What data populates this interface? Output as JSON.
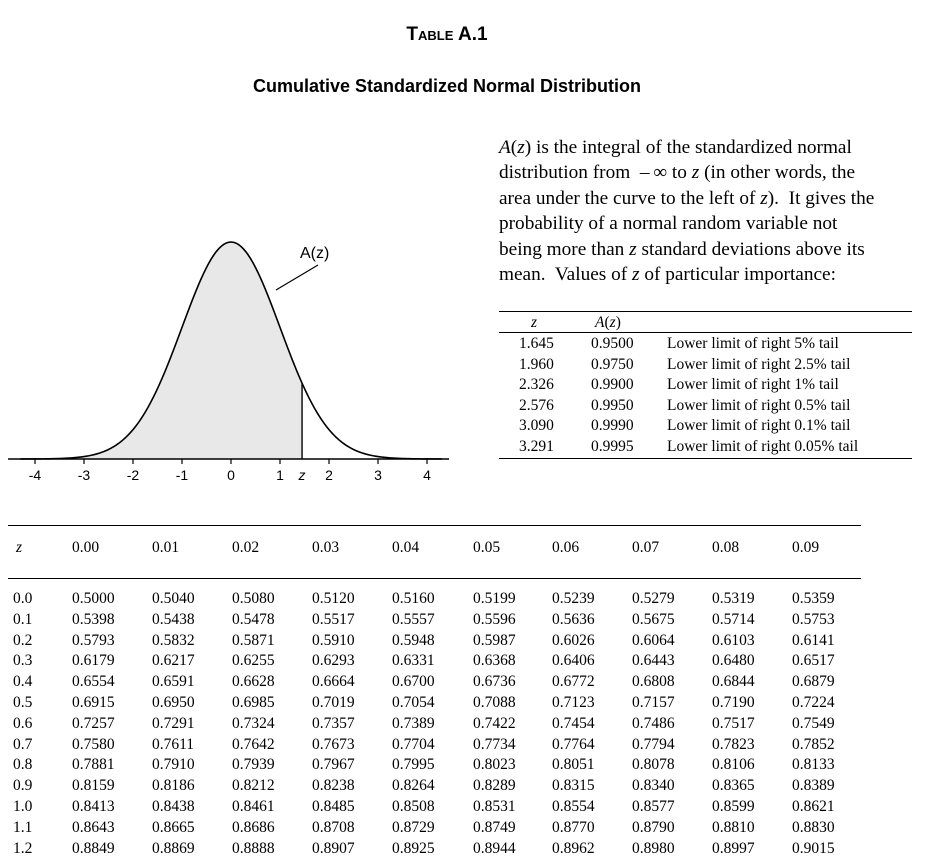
{
  "header": {
    "table_label": "Table A.1",
    "subtitle": "Cumulative Standardized Normal Distribution"
  },
  "description": {
    "lines": [
      [
        {
          "t": "A",
          "i": true
        },
        {
          "t": "(",
          "i": false
        },
        {
          "t": "z",
          "i": true
        },
        {
          "t": ") is the integral of the standardized normal",
          "i": false
        }
      ],
      [
        {
          "t": "distribution from  – ∞ to ",
          "i": false
        },
        {
          "t": "z",
          "i": true
        },
        {
          "t": " (in other words, the",
          "i": false
        }
      ],
      [
        {
          "t": "area under the curve to the left of ",
          "i": false
        },
        {
          "t": "z",
          "i": true
        },
        {
          "t": ").  It gives the",
          "i": false
        }
      ],
      [
        {
          "t": "probability of a normal random variable not",
          "i": false
        }
      ],
      [
        {
          "t": "being more than ",
          "i": false
        },
        {
          "t": "z",
          "i": true
        },
        {
          "t": " standard deviations above its",
          "i": false
        }
      ],
      [
        {
          "t": "mean.  Values of ",
          "i": false
        },
        {
          "t": "z",
          "i": true
        },
        {
          "t": " of particular importance:",
          "i": false
        }
      ]
    ]
  },
  "figure": {
    "area_label": "A(z)",
    "z_marker": "z",
    "z_value": 1.45,
    "x_ticks": [
      "-4",
      "-3",
      "-2",
      "-1",
      "0",
      "1",
      "2",
      "3",
      "4"
    ],
    "colors": {
      "fill": "#e8e8e8",
      "line": "#000000"
    }
  },
  "special_values": {
    "headers": [
      "z",
      "A(z)"
    ],
    "rows": [
      [
        "1.645",
        "0.9500",
        "Lower limit of right 5% tail"
      ],
      [
        "1.960",
        "0.9750",
        "Lower limit of right 2.5% tail"
      ],
      [
        "2.326",
        "0.9900",
        "Lower limit of right 1% tail"
      ],
      [
        "2.576",
        "0.9950",
        "Lower limit of right 0.5% tail"
      ],
      [
        "3.090",
        "0.9990",
        "Lower limit of right 0.1% tail"
      ],
      [
        "3.291",
        "0.9995",
        "Lower limit of right 0.05% tail"
      ]
    ]
  },
  "main_table": {
    "headers": [
      "z",
      "0.00",
      "0.01",
      "0.02",
      "0.03",
      "0.04",
      "0.05",
      "0.06",
      "0.07",
      "0.08",
      "0.09"
    ],
    "rows": [
      [
        "0.0",
        "0.5000",
        "0.5040",
        "0.5080",
        "0.5120",
        "0.5160",
        "0.5199",
        "0.5239",
        "0.5279",
        "0.5319",
        "0.5359"
      ],
      [
        "0.1",
        "0.5398",
        "0.5438",
        "0.5478",
        "0.5517",
        "0.5557",
        "0.5596",
        "0.5636",
        "0.5675",
        "0.5714",
        "0.5753"
      ],
      [
        "0.2",
        "0.5793",
        "0.5832",
        "0.5871",
        "0.5910",
        "0.5948",
        "0.5987",
        "0.6026",
        "0.6064",
        "0.6103",
        "0.6141"
      ],
      [
        "0.3",
        "0.6179",
        "0.6217",
        "0.6255",
        "0.6293",
        "0.6331",
        "0.6368",
        "0.6406",
        "0.6443",
        "0.6480",
        "0.6517"
      ],
      [
        "0.4",
        "0.6554",
        "0.6591",
        "0.6628",
        "0.6664",
        "0.6700",
        "0.6736",
        "0.6772",
        "0.6808",
        "0.6844",
        "0.6879"
      ],
      [
        "0.5",
        "0.6915",
        "0.6950",
        "0.6985",
        "0.7019",
        "0.7054",
        "0.7088",
        "0.7123",
        "0.7157",
        "0.7190",
        "0.7224"
      ],
      [
        "0.6",
        "0.7257",
        "0.7291",
        "0.7324",
        "0.7357",
        "0.7389",
        "0.7422",
        "0.7454",
        "0.7486",
        "0.7517",
        "0.7549"
      ],
      [
        "0.7",
        "0.7580",
        "0.7611",
        "0.7642",
        "0.7673",
        "0.7704",
        "0.7734",
        "0.7764",
        "0.7794",
        "0.7823",
        "0.7852"
      ],
      [
        "0.8",
        "0.7881",
        "0.7910",
        "0.7939",
        "0.7967",
        "0.7995",
        "0.8023",
        "0.8051",
        "0.8078",
        "0.8106",
        "0.8133"
      ],
      [
        "0.9",
        "0.8159",
        "0.8186",
        "0.8212",
        "0.8238",
        "0.8264",
        "0.8289",
        "0.8315",
        "0.8340",
        "0.8365",
        "0.8389"
      ],
      [
        "1.0",
        "0.8413",
        "0.8438",
        "0.8461",
        "0.8485",
        "0.8508",
        "0.8531",
        "0.8554",
        "0.8577",
        "0.8599",
        "0.8621"
      ],
      [
        "1.1",
        "0.8643",
        "0.8665",
        "0.8686",
        "0.8708",
        "0.8729",
        "0.8749",
        "0.8770",
        "0.8790",
        "0.8810",
        "0.8830"
      ],
      [
        "1.2",
        "0.8849",
        "0.8869",
        "0.8888",
        "0.8907",
        "0.8925",
        "0.8944",
        "0.8962",
        "0.8980",
        "0.8997",
        "0.9015"
      ]
    ]
  }
}
